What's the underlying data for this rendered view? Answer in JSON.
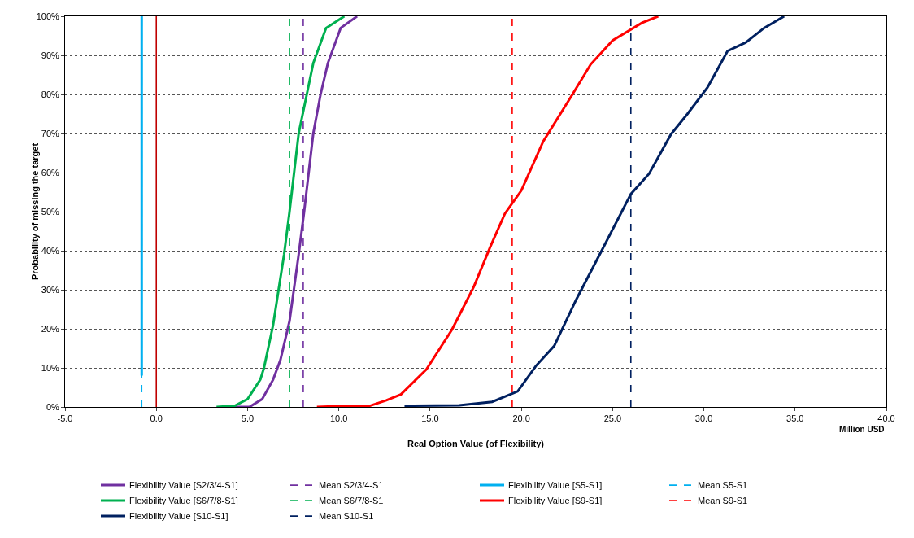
{
  "chart_data": {
    "type": "line",
    "xlabel": "Real Option Value (of Flexibility)",
    "ylabel": "Probability of missing the target",
    "annotations": [
      "Million USD"
    ],
    "xlim": [
      -5,
      40
    ],
    "xticks": [
      {
        "value": -5,
        "label": "-5.0"
      },
      {
        "value": 0,
        "label": "0.0"
      },
      {
        "value": 5,
        "label": "5.0"
      },
      {
        "value": 10,
        "label": "10.0"
      },
      {
        "value": 15,
        "label": "15.0"
      },
      {
        "value": 20,
        "label": "20.0"
      },
      {
        "value": 25,
        "label": "25.0"
      },
      {
        "value": 30,
        "label": "30.0"
      },
      {
        "value": 35,
        "label": "35.0"
      },
      {
        "value": 40,
        "label": "40.0"
      }
    ],
    "ylim": [
      0,
      100
    ],
    "yticks": [
      {
        "value": 0,
        "label": "0%"
      },
      {
        "value": 10,
        "label": "10%"
      },
      {
        "value": 20,
        "label": "20%"
      },
      {
        "value": 30,
        "label": "30%"
      },
      {
        "value": 40,
        "label": "40%"
      },
      {
        "value": 50,
        "label": "50%"
      },
      {
        "value": 60,
        "label": "60%"
      },
      {
        "value": 70,
        "label": "70%"
      },
      {
        "value": 80,
        "label": "80%"
      },
      {
        "value": 90,
        "label": "90%"
      },
      {
        "value": 100,
        "label": "100%"
      }
    ],
    "grid": "y",
    "legend": "bottom",
    "line_style": "solid",
    "marker": "none",
    "series": [
      {
        "name": "Flexibility Value [S2/3/4-S1]",
        "color": "#7030a0",
        "x": [
          4.3,
          5.1,
          5.8,
          6.4,
          6.8,
          7.3,
          7.8,
          8.1,
          8.6,
          9.0,
          9.4,
          10.1,
          11.0
        ],
        "values": [
          0,
          0,
          2,
          7,
          12,
          22,
          39,
          50,
          70,
          80,
          88,
          97,
          100
        ]
      },
      {
        "name": "Flexibility Value [S5-S1]",
        "color": "#00b0f0",
        "x": [
          -0.8,
          -0.8
        ],
        "values": [
          8,
          100
        ]
      },
      {
        "name": "Flexibility Value [S6/7/8-S1]",
        "color": "#00b050",
        "x": [
          3.3,
          4.3,
          5.0,
          5.7,
          5.9,
          6.4,
          7.0,
          7.3,
          7.8,
          8.2,
          8.6,
          9.3,
          10.3
        ],
        "values": [
          0,
          0.3,
          2,
          7,
          10,
          21,
          39,
          50,
          70,
          79,
          88,
          97,
          100
        ]
      },
      {
        "name": "Flexibility Value [S9-S1]",
        "color": "#ff0000",
        "x": [
          8.8,
          10.0,
          11.7,
          12.6,
          13.4,
          14.8,
          16.2,
          17.4,
          18.3,
          19.1,
          20.0,
          21.2,
          22.8,
          23.8,
          25.0,
          26.6,
          27.5
        ],
        "values": [
          0,
          0.2,
          0.3,
          1.7,
          3.2,
          9.6,
          19.8,
          30.8,
          41,
          49.5,
          55.4,
          68,
          80,
          87.7,
          93.8,
          98.3,
          100
        ]
      },
      {
        "name": "Flexibility Value [S10-S1]",
        "color": "#002060",
        "x": [
          13.6,
          16.6,
          18.4,
          19.8,
          20.8,
          21.8,
          23.0,
          24.4,
          26.0,
          27.0,
          28.2,
          29.1,
          30.2,
          31.3,
          32.3,
          33.3,
          34.4
        ],
        "values": [
          0.3,
          0.4,
          1.3,
          4,
          10.5,
          15.6,
          27.4,
          40,
          54.5,
          59.7,
          69.8,
          75,
          81.8,
          91.1,
          93.3,
          97,
          100
        ]
      }
    ],
    "ref_lines": [
      {
        "axis": "x",
        "value": 8.05,
        "label": "Mean S2/3/4-S1",
        "color": "#7030a0",
        "line_style": "dashed"
      },
      {
        "axis": "x",
        "value": -0.8,
        "label": "Mean S5-S1",
        "color": "#00b0f0",
        "line_style": "dashed"
      },
      {
        "axis": "x",
        "value": 7.3,
        "label": "Mean S6/7/8-S1",
        "color": "#00b050",
        "line_style": "dashed"
      },
      {
        "axis": "x",
        "value": 19.5,
        "label": "Mean S9-S1",
        "color": "#ff0000",
        "line_style": "dashed"
      },
      {
        "axis": "x",
        "value": 26.0,
        "label": "Mean S10-S1",
        "color": "#002060",
        "line_style": "dashed"
      },
      {
        "axis": "x",
        "value": 0,
        "color": "#c00000",
        "line_style": "solid"
      }
    ]
  }
}
